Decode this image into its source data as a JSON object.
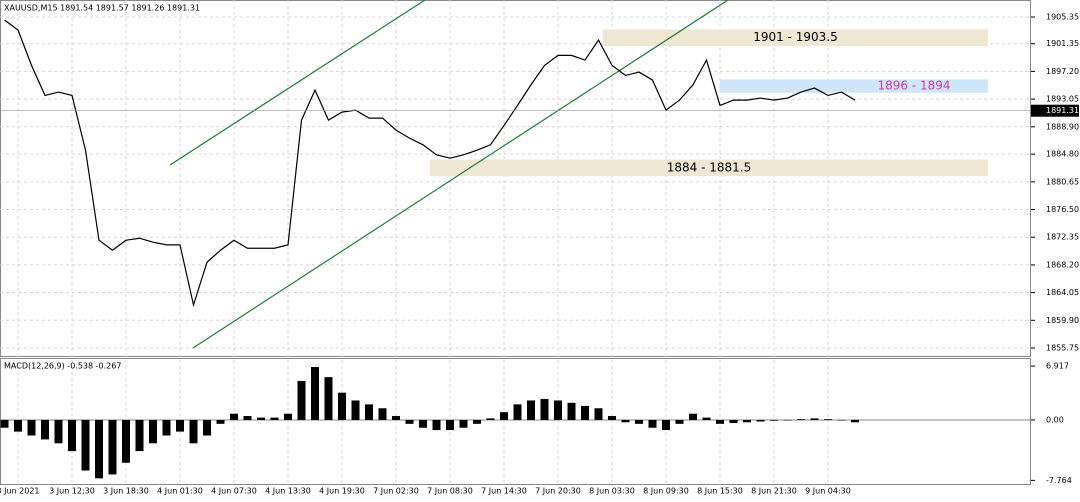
{
  "chart_data": [
    {
      "type": "line",
      "title": "XAUUSD,M15  1891.54 1891.57 1891.26 1891.31",
      "categories": [
        null,
        "3 Jun 2021",
        null,
        null,
        null,
        "3 Jun 12:30",
        null,
        null,
        null,
        "3 Jun 18:30",
        null,
        null,
        null,
        "4 Jun 01:30",
        null,
        null,
        null,
        "4 Jun 07:30",
        null,
        null,
        null,
        "4 Jun 13:30",
        null,
        null,
        null,
        "4 Jun 19:30",
        null,
        null,
        null,
        "7 Jun 02:30",
        null,
        null,
        null,
        "7 Jun 08:30",
        null,
        null,
        null,
        "7 Jun 14:30",
        null,
        null,
        null,
        "7 Jun 20:30",
        null,
        null,
        null,
        "8 Jun 03:30",
        null,
        null,
        null,
        "8 Jun 09:30",
        null,
        null,
        null,
        "8 Jun 15:30",
        null,
        null,
        null,
        "8 Jun 21:30",
        null,
        null,
        null,
        "9 Jun 04:30",
        null,
        null
      ],
      "values": [
        1904.9,
        1903.4,
        1898.1,
        1893.6,
        1894.1,
        1893.6,
        1885.4,
        1871.9,
        1870.4,
        1871.9,
        1872.2,
        1871.6,
        1871.2,
        1871.2,
        1862.2,
        1868.6,
        1870.4,
        1871.9,
        1870.7,
        1870.7,
        1870.7,
        1871.2,
        1889.9,
        1894.4,
        1889.9,
        1891.1,
        1891.4,
        1890.2,
        1890.2,
        1888.4,
        1887.2,
        1886.2,
        1884.7,
        1884.2,
        1884.7,
        1885.4,
        1886.2,
        1889.1,
        1892.1,
        1895.2,
        1898.1,
        1899.6,
        1899.6,
        1898.9,
        1901.9,
        1898.1,
        1896.6,
        1897.1,
        1895.9,
        1891.4,
        1892.9,
        1895.2,
        1898.9,
        1892.1,
        1892.9,
        1892.9,
        1893.2,
        1892.9,
        1893.2,
        1894.1,
        1894.7,
        1893.6,
        1894.1,
        1892.9
      ],
      "color": "#000000",
      "ylim": [
        1854.25,
        1907.9
      ],
      "yticks": [
        {
          "value": 1905.35,
          "label": "1905.35"
        },
        {
          "value": 1901.35,
          "label": "1901.35"
        },
        {
          "value": 1897.2,
          "label": "1897.20"
        },
        {
          "value": 1893.05,
          "label": "1893.05"
        },
        {
          "value": 1888.9,
          "label": "1888.90"
        },
        {
          "value": 1884.8,
          "label": "1884.80"
        },
        {
          "value": 1880.65,
          "label": "1880.65"
        },
        {
          "value": 1876.5,
          "label": "1876.50"
        },
        {
          "value": 1872.35,
          "label": "1872.35"
        },
        {
          "value": 1868.2,
          "label": "1868.20"
        },
        {
          "value": 1864.05,
          "label": "1864.05"
        },
        {
          "value": 1859.9,
          "label": "1859.90"
        },
        {
          "value": 1855.75,
          "label": "1855.75"
        }
      ],
      "last_price": 1891.31,
      "grid": true,
      "zones": [
        {
          "label": "1901 - 1903.5",
          "low": 1901,
          "high": 1903.5,
          "color": "#ede7d3",
          "text_color": "#000000"
        },
        {
          "label": "1896 - 1894",
          "low": 1894,
          "high": 1896,
          "color": "#cfe5f8",
          "text_color": "#d43cb0"
        },
        {
          "label": "1884 - 1881.5",
          "low": 1881.5,
          "high": 1884,
          "color": "#ede7d3",
          "text_color": "#000000"
        }
      ]
    },
    {
      "type": "bar",
      "title": "MACD(12,26,9) -0.538 -0.267",
      "values": [
        -1,
        -1.5,
        -2,
        -2.5,
        -3,
        -4,
        -6.5,
        -7.5,
        -7,
        -5.5,
        -4,
        -3,
        -2,
        -1.5,
        -3,
        -2,
        -0.5,
        0.8,
        0.5,
        0.3,
        0.3,
        0.8,
        5,
        6.8,
        5.5,
        3.5,
        2.5,
        2,
        1.5,
        0.5,
        -0.5,
        -1,
        -1.3,
        -1.3,
        -1,
        -0.5,
        0.2,
        1,
        2,
        2.5,
        2.7,
        2.5,
        2.2,
        1.8,
        1.5,
        0.5,
        -0.3,
        -0.5,
        -1,
        -1.3,
        -0.5,
        0.8,
        0.3,
        -0.5,
        -0.4,
        -0.3,
        -0.2,
        -0.1,
        0,
        0.1,
        0.2,
        0.1,
        0,
        -0.3
      ],
      "color": "#000000",
      "ylim": [
        -9,
        7.7
      ],
      "yticks": [
        {
          "value": 6.917,
          "label": "6.917"
        },
        {
          "value": 0,
          "label": "0.00"
        },
        {
          "value": -7.764,
          "label": "-7.764"
        }
      ]
    }
  ]
}
